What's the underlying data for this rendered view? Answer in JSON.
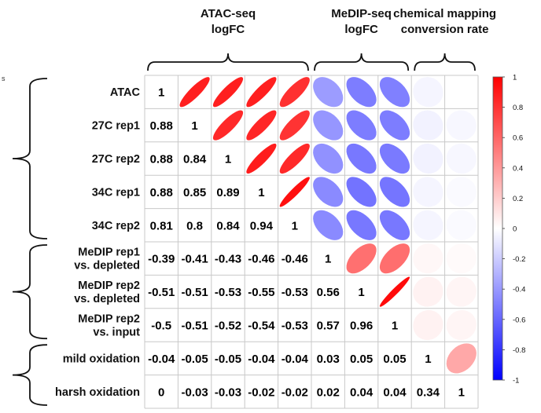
{
  "chart_data": {
    "type": "heatmap",
    "subtype": "correlation-matrix-upper-ellipse-lower-number",
    "variables": [
      "ATAC",
      "27C rep1",
      "27C rep2",
      "34C rep1",
      "34C rep2",
      "MeDIP rep1 vs. depleted",
      "MeDIP rep2 vs. depleted",
      "MeDIP rep2 vs. input",
      "mild oxidation",
      "harsh oxidation"
    ],
    "row_labels": [
      [
        "ATAC"
      ],
      [
        "27C rep1"
      ],
      [
        "27C rep2"
      ],
      [
        "34C rep1"
      ],
      [
        "34C rep2"
      ],
      [
        "MeDIP rep1",
        "vs. depleted"
      ],
      [
        "MeDIP rep2",
        "vs. depleted"
      ],
      [
        "MeDIP rep2",
        "vs. input"
      ],
      [
        "mild oxidation"
      ],
      [
        "harsh oxidation"
      ]
    ],
    "matrix": [
      [
        1,
        0.88,
        0.88,
        0.88,
        0.81,
        -0.39,
        -0.51,
        -0.5,
        -0.04,
        0
      ],
      [
        0.88,
        1,
        0.84,
        0.85,
        0.8,
        -0.41,
        -0.51,
        -0.51,
        -0.05,
        -0.03
      ],
      [
        0.88,
        0.84,
        1,
        0.89,
        0.84,
        -0.43,
        -0.53,
        -0.52,
        -0.05,
        -0.03
      ],
      [
        0.88,
        0.85,
        0.89,
        1,
        0.94,
        -0.46,
        -0.55,
        -0.54,
        -0.04,
        -0.02
      ],
      [
        0.81,
        0.8,
        0.84,
        0.94,
        1,
        -0.46,
        -0.53,
        -0.53,
        -0.04,
        -0.02
      ],
      [
        -0.39,
        -0.41,
        -0.43,
        -0.46,
        -0.46,
        1,
        0.56,
        0.57,
        0.03,
        0.02
      ],
      [
        -0.51,
        -0.51,
        -0.53,
        -0.55,
        -0.53,
        0.56,
        1,
        0.96,
        0.05,
        0.04
      ],
      [
        -0.5,
        -0.51,
        -0.52,
        -0.54,
        -0.53,
        0.57,
        0.96,
        1,
        0.05,
        0.04
      ],
      [
        -0.04,
        -0.05,
        -0.05,
        -0.04,
        -0.04,
        0.03,
        0.05,
        0.05,
        1,
        0.34
      ],
      [
        0,
        -0.03,
        -0.03,
        -0.02,
        -0.02,
        0.02,
        0.04,
        0.04,
        0.34,
        1
      ]
    ],
    "display_labels": [
      [
        "1",
        "",
        "",
        "",
        "",
        "",
        "",
        "",
        "",
        ""
      ],
      [
        "0.88",
        "1",
        "",
        "",
        "",
        "",
        "",
        "",
        "",
        ""
      ],
      [
        "0.88",
        "0.84",
        "1",
        "",
        "",
        "",
        "",
        "",
        "",
        ""
      ],
      [
        "0.88",
        "0.85",
        "0.89",
        "1",
        "",
        "",
        "",
        "",
        "",
        ""
      ],
      [
        "0.81",
        "0.8",
        "0.84",
        "0.94",
        "1",
        "",
        "",
        "",
        "",
        ""
      ],
      [
        "-0.39",
        "-0.41",
        "-0.43",
        "-0.46",
        "-0.46",
        "1",
        "",
        "",
        "",
        ""
      ],
      [
        "-0.51",
        "-0.51",
        "-0.53",
        "-0.55",
        "-0.53",
        "0.56",
        "1",
        "",
        "",
        ""
      ],
      [
        "-0.5",
        "-0.51",
        "-0.52",
        "-0.54",
        "-0.53",
        "0.57",
        "0.96",
        "1",
        "",
        ""
      ],
      [
        "-0.04",
        "-0.05",
        "-0.05",
        "-0.04",
        "-0.04",
        "0.03",
        "0.05",
        "0.05",
        "1",
        ""
      ],
      [
        "0",
        "-0.03",
        "-0.03",
        "-0.02",
        "-0.02",
        "0.02",
        "0.04",
        "0.04",
        "0.34",
        "1"
      ]
    ],
    "column_groups": [
      {
        "lines": [
          "ATAC-seq",
          "logFC"
        ],
        "from": 0,
        "to": 4
      },
      {
        "lines": [
          "MeDIP-seq",
          "logFC"
        ],
        "from": 5,
        "to": 7
      },
      {
        "lines": [
          "chemical mapping",
          "conversion rate"
        ],
        "from": 8,
        "to": 9
      }
    ],
    "row_groups": [
      {
        "from": 0,
        "to": 4
      },
      {
        "from": 5,
        "to": 7
      },
      {
        "from": 8,
        "to": 9
      }
    ],
    "colorbar": {
      "range": [
        -1,
        1
      ],
      "ticks": [
        "1",
        "0.8",
        "0.6",
        "0.4",
        "0.2",
        "0",
        "-0.2",
        "-0.4",
        "-0.6",
        "-0.8",
        "-1"
      ],
      "low_color": "#0000ff",
      "mid_color": "#ffffff",
      "high_color": "#ff0000"
    },
    "edge_text": "s"
  },
  "colors": {
    "grid": "#c8c8c8",
    "bracket": "#111111",
    "text": "#111111"
  }
}
